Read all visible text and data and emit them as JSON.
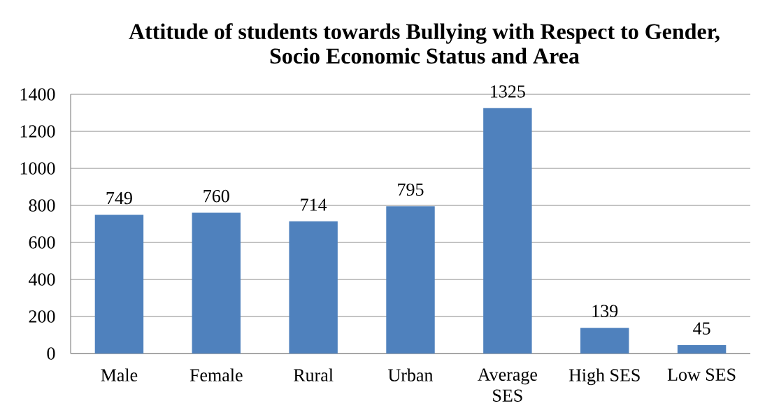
{
  "chart_data": {
    "type": "bar",
    "title": "Attitude of students towards Bullying with Respect to Gender, Socio Economic Status and Area",
    "categories": [
      "Male",
      "Female",
      "Rural",
      "Urban",
      "Average SES",
      "High SES",
      "Low SES"
    ],
    "values": [
      749,
      760,
      714,
      795,
      1325,
      139,
      45
    ],
    "color": "#4f81bd",
    "ylim": [
      0,
      1400
    ],
    "yticks": [
      0,
      200,
      400,
      600,
      800,
      1000,
      1200,
      1400
    ],
    "grid": "y",
    "data_labels": true
  }
}
